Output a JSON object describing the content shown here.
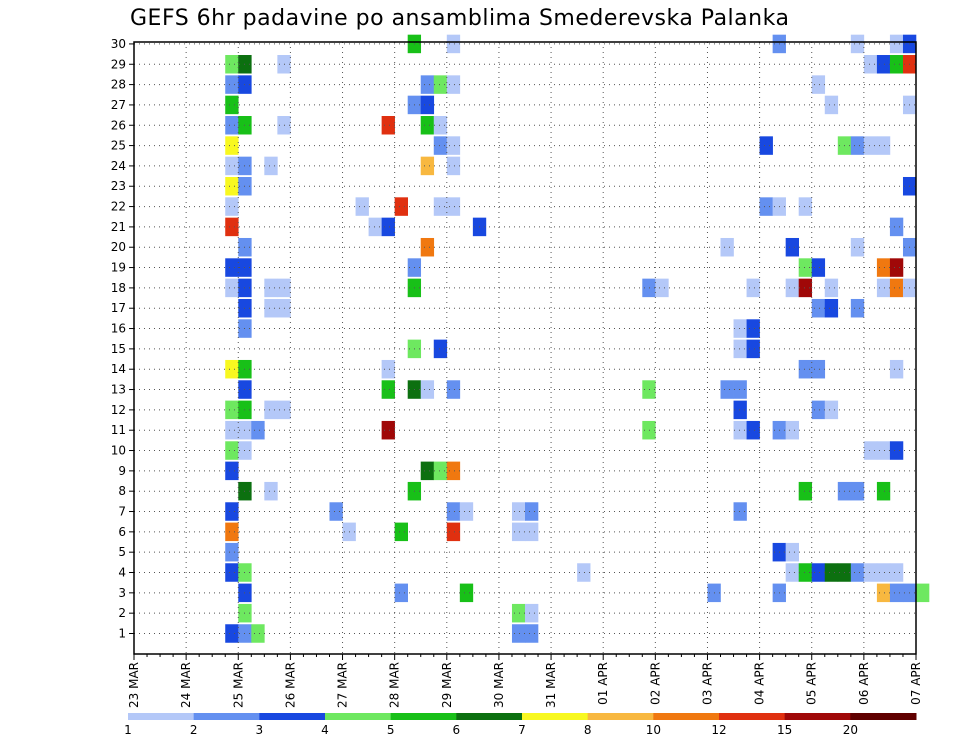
{
  "chart_data": {
    "type": "heatmap",
    "title": "GEFS 6hr padavine po ansamblima Smederevska Palanka",
    "y_ticks": [
      "1",
      "2",
      "3",
      "4",
      "5",
      "6",
      "7",
      "8",
      "9",
      "10",
      "11",
      "12",
      "13",
      "14",
      "15",
      "16",
      "17",
      "18",
      "19",
      "20",
      "21",
      "22",
      "23",
      "24",
      "25",
      "26",
      "27",
      "28",
      "29",
      "30"
    ],
    "x_ticks": [
      "23 MAR",
      "24 MAR",
      "25 MAR",
      "26 MAR",
      "27 MAR",
      "28 MAR",
      "29 MAR",
      "30 MAR",
      "31 MAR",
      "01 APR",
      "02 APR",
      "03 APR",
      "04 APR",
      "05 APR",
      "06 APR",
      "07 APR"
    ],
    "steps_per_day": 4,
    "grid": true,
    "legend_position": "bottom",
    "colorbar": {
      "labels": [
        "1",
        "2",
        "3",
        "4",
        "5",
        "6",
        "7",
        "8",
        "10",
        "12",
        "15",
        "20"
      ],
      "colors": [
        "#b4c8f8",
        "#6490f0",
        "#1848e0",
        "#6ee860",
        "#18c018",
        "#0c7010",
        "#f8f820",
        "#f8b840",
        "#f07810",
        "#e03010",
        "#a00808",
        "#600000"
      ]
    },
    "note": "cells: [member, 6h-step index from 23 MAR 00Z, color class 0-11]",
    "cells": [
      [
        1,
        7,
        2
      ],
      [
        1,
        8,
        1
      ],
      [
        1,
        9,
        3
      ],
      [
        1,
        29,
        1
      ],
      [
        1,
        30,
        1
      ],
      [
        2,
        8,
        3
      ],
      [
        2,
        29,
        3
      ],
      [
        2,
        30,
        0
      ],
      [
        3,
        8,
        2
      ],
      [
        3,
        20,
        1
      ],
      [
        3,
        25,
        4
      ],
      [
        3,
        44,
        1
      ],
      [
        3,
        49,
        1
      ],
      [
        3,
        57,
        7
      ],
      [
        3,
        58,
        1
      ],
      [
        3,
        59,
        1
      ],
      [
        3,
        60,
        3
      ],
      [
        4,
        7,
        2
      ],
      [
        4,
        8,
        3
      ],
      [
        4,
        34,
        0
      ],
      [
        4,
        50,
        0
      ],
      [
        4,
        51,
        4
      ],
      [
        4,
        52,
        2
      ],
      [
        4,
        53,
        5
      ],
      [
        4,
        54,
        5
      ],
      [
        4,
        55,
        1
      ],
      [
        4,
        56,
        0
      ],
      [
        4,
        57,
        0
      ],
      [
        4,
        58,
        0
      ],
      [
        5,
        7,
        1
      ],
      [
        5,
        49,
        2
      ],
      [
        5,
        50,
        0
      ],
      [
        6,
        7,
        8
      ],
      [
        6,
        16,
        0
      ],
      [
        6,
        20,
        4
      ],
      [
        6,
        24,
        9
      ],
      [
        6,
        29,
        0
      ],
      [
        6,
        30,
        0
      ],
      [
        7,
        7,
        2
      ],
      [
        7,
        15,
        1
      ],
      [
        7,
        24,
        1
      ],
      [
        7,
        25,
        0
      ],
      [
        7,
        29,
        0
      ],
      [
        7,
        30,
        1
      ],
      [
        7,
        46,
        1
      ],
      [
        8,
        8,
        5
      ],
      [
        8,
        10,
        0
      ],
      [
        8,
        21,
        4
      ],
      [
        8,
        51,
        4
      ],
      [
        8,
        54,
        1
      ],
      [
        8,
        55,
        1
      ],
      [
        8,
        57,
        4
      ],
      [
        9,
        7,
        2
      ],
      [
        9,
        22,
        5
      ],
      [
        9,
        23,
        3
      ],
      [
        9,
        24,
        8
      ],
      [
        10,
        7,
        3
      ],
      [
        10,
        8,
        0
      ],
      [
        10,
        56,
        0
      ],
      [
        10,
        57,
        0
      ],
      [
        10,
        58,
        2
      ],
      [
        11,
        7,
        0
      ],
      [
        11,
        8,
        0
      ],
      [
        11,
        9,
        1
      ],
      [
        11,
        19,
        10
      ],
      [
        11,
        39,
        3
      ],
      [
        11,
        46,
        0
      ],
      [
        11,
        47,
        2
      ],
      [
        11,
        49,
        1
      ],
      [
        11,
        50,
        0
      ],
      [
        12,
        7,
        3
      ],
      [
        12,
        8,
        4
      ],
      [
        12,
        10,
        0
      ],
      [
        12,
        11,
        0
      ],
      [
        12,
        46,
        2
      ],
      [
        12,
        52,
        1
      ],
      [
        12,
        53,
        0
      ],
      [
        13,
        8,
        2
      ],
      [
        13,
        19,
        4
      ],
      [
        13,
        21,
        5
      ],
      [
        13,
        22,
        0
      ],
      [
        13,
        24,
        1
      ],
      [
        13,
        39,
        3
      ],
      [
        13,
        45,
        1
      ],
      [
        13,
        46,
        1
      ],
      [
        14,
        7,
        6
      ],
      [
        14,
        8,
        4
      ],
      [
        14,
        19,
        0
      ],
      [
        14,
        51,
        1
      ],
      [
        14,
        52,
        1
      ],
      [
        14,
        58,
        0
      ],
      [
        15,
        21,
        3
      ],
      [
        15,
        23,
        2
      ],
      [
        15,
        46,
        0
      ],
      [
        15,
        47,
        2
      ],
      [
        16,
        8,
        1
      ],
      [
        16,
        46,
        0
      ],
      [
        16,
        47,
        2
      ],
      [
        17,
        8,
        2
      ],
      [
        17,
        10,
        0
      ],
      [
        17,
        11,
        0
      ],
      [
        17,
        52,
        1
      ],
      [
        17,
        53,
        2
      ],
      [
        17,
        55,
        1
      ],
      [
        18,
        7,
        0
      ],
      [
        18,
        8,
        2
      ],
      [
        18,
        10,
        0
      ],
      [
        18,
        11,
        0
      ],
      [
        18,
        21,
        4
      ],
      [
        18,
        39,
        1
      ],
      [
        18,
        40,
        0
      ],
      [
        18,
        47,
        0
      ],
      [
        18,
        50,
        0
      ],
      [
        18,
        51,
        10
      ],
      [
        18,
        53,
        0
      ],
      [
        18,
        57,
        0
      ],
      [
        18,
        58,
        8
      ],
      [
        18,
        59,
        0
      ],
      [
        19,
        7,
        2
      ],
      [
        19,
        8,
        2
      ],
      [
        19,
        21,
        1
      ],
      [
        19,
        51,
        3
      ],
      [
        19,
        52,
        2
      ],
      [
        19,
        57,
        8
      ],
      [
        19,
        58,
        10
      ],
      [
        20,
        8,
        1
      ],
      [
        20,
        22,
        8
      ],
      [
        20,
        45,
        0
      ],
      [
        20,
        50,
        2
      ],
      [
        20,
        55,
        0
      ],
      [
        20,
        59,
        1
      ],
      [
        21,
        7,
        9
      ],
      [
        21,
        18,
        0
      ],
      [
        21,
        19,
        2
      ],
      [
        21,
        26,
        2
      ],
      [
        21,
        58,
        1
      ],
      [
        22,
        7,
        0
      ],
      [
        22,
        17,
        0
      ],
      [
        22,
        20,
        9
      ],
      [
        22,
        23,
        0
      ],
      [
        22,
        24,
        0
      ],
      [
        22,
        48,
        1
      ],
      [
        22,
        49,
        0
      ],
      [
        22,
        51,
        0
      ],
      [
        23,
        7,
        6
      ],
      [
        23,
        8,
        1
      ],
      [
        23,
        59,
        2
      ],
      [
        24,
        7,
        0
      ],
      [
        24,
        8,
        1
      ],
      [
        24,
        10,
        0
      ],
      [
        24,
        22,
        7
      ],
      [
        24,
        24,
        0
      ],
      [
        25,
        7,
        6
      ],
      [
        25,
        23,
        1
      ],
      [
        25,
        24,
        0
      ],
      [
        25,
        48,
        2
      ],
      [
        25,
        54,
        3
      ],
      [
        25,
        55,
        1
      ],
      [
        25,
        56,
        0
      ],
      [
        25,
        57,
        0
      ],
      [
        26,
        7,
        1
      ],
      [
        26,
        8,
        4
      ],
      [
        26,
        11,
        0
      ],
      [
        26,
        19,
        9
      ],
      [
        26,
        22,
        4
      ],
      [
        26,
        23,
        0
      ],
      [
        27,
        7,
        4
      ],
      [
        27,
        21,
        1
      ],
      [
        27,
        22,
        2
      ],
      [
        27,
        53,
        0
      ],
      [
        27,
        59,
        0
      ],
      [
        28,
        7,
        1
      ],
      [
        28,
        8,
        2
      ],
      [
        28,
        22,
        1
      ],
      [
        28,
        23,
        3
      ],
      [
        28,
        24,
        0
      ],
      [
        28,
        52,
        0
      ],
      [
        29,
        7,
        3
      ],
      [
        29,
        8,
        5
      ],
      [
        29,
        11,
        0
      ],
      [
        29,
        56,
        0
      ],
      [
        29,
        57,
        2
      ],
      [
        29,
        58,
        4
      ],
      [
        29,
        59,
        9
      ],
      [
        30,
        21,
        4
      ],
      [
        30,
        24,
        0
      ],
      [
        30,
        49,
        1
      ],
      [
        30,
        55,
        0
      ],
      [
        30,
        58,
        0
      ],
      [
        30,
        59,
        2
      ]
    ]
  }
}
